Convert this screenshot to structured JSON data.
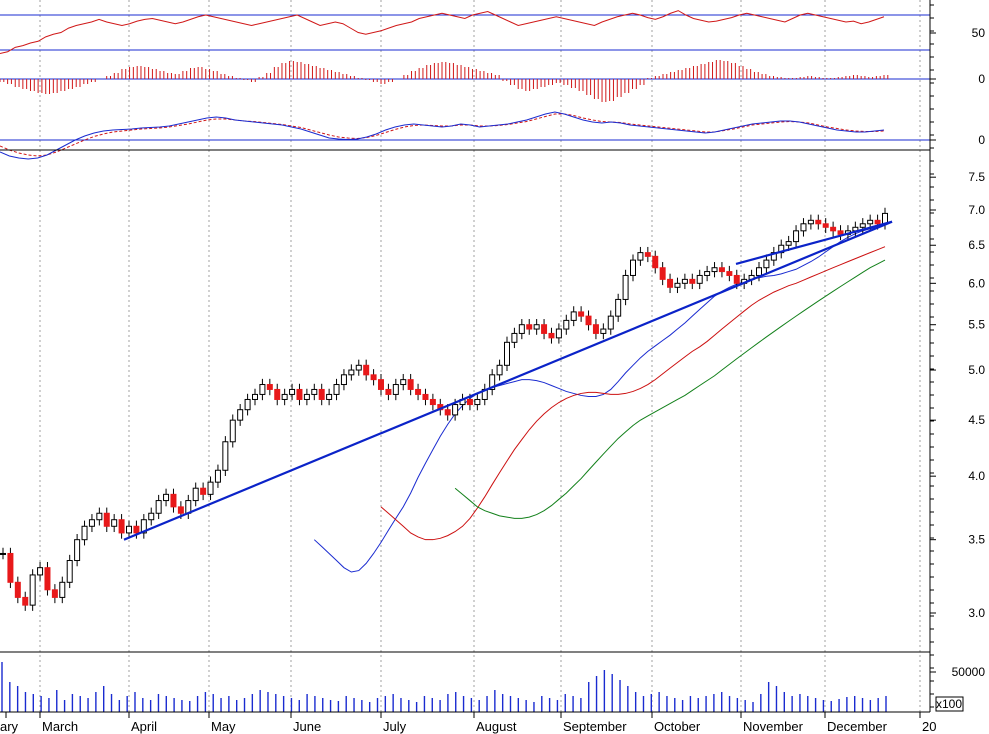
{
  "chart_data": {
    "type": "candlestick",
    "colors": {
      "up_candle": "#ffffff",
      "down_candle": "#e8191a",
      "ma_short": "#1a2bd0",
      "ma_mid": "#cc1010",
      "ma_long": "#12801a",
      "trendline": "#0b23c8",
      "rsi": "#d01818",
      "histogram": "#d01818",
      "macd": "#1a2bd0",
      "signal": "#d01818",
      "volume": "#1a2bd0",
      "grid": "#a0a0a0"
    },
    "x_labels": [
      "ary",
      "March",
      "April",
      "May",
      "June",
      "July",
      "August",
      "September",
      "October",
      "November",
      "December",
      "20"
    ],
    "panels": {
      "rsi": {
        "ticks": [
          "50"
        ],
        "reference_lines": [
          70,
          30
        ],
        "values": [
          26,
          28,
          33,
          35,
          38,
          40,
          45,
          48,
          50,
          55,
          58,
          60,
          62,
          65,
          62,
          60,
          58,
          60,
          63,
          65,
          66,
          64,
          62,
          60,
          62,
          65,
          68,
          70,
          68,
          66,
          64,
          62,
          60,
          58,
          60,
          62,
          64,
          66,
          68,
          70,
          66,
          62,
          58,
          60,
          62,
          60,
          55,
          50,
          48,
          50,
          52,
          55,
          58,
          60,
          62,
          66,
          68,
          70,
          72,
          70,
          68,
          66,
          70,
          72,
          74,
          70,
          66,
          62,
          58,
          60,
          62,
          64,
          66,
          68,
          66,
          64,
          62,
          60,
          58,
          62,
          65,
          68,
          70,
          72,
          70,
          67,
          65,
          68,
          72,
          75,
          70,
          66,
          64,
          62,
          63,
          65,
          67,
          70,
          72,
          70,
          68,
          66,
          64,
          62,
          66,
          70,
          72,
          70,
          68,
          66,
          64,
          62,
          63,
          60,
          62,
          65,
          68
        ]
      },
      "macd_histogram": {
        "ticks": [
          "0"
        ],
        "values": [
          -0.3,
          -0.5,
          -0.8,
          -1,
          -1.2,
          -1.4,
          -1.5,
          -1.4,
          -1.2,
          -1,
          -0.8,
          -0.5,
          -0.3,
          0,
          0.3,
          0.6,
          1,
          1.2,
          1.3,
          1.2,
          1,
          0.8,
          0.6,
          0.5,
          0.8,
          1.1,
          1.2,
          1,
          0.8,
          0.5,
          0.3,
          0.1,
          -0.1,
          -0.3,
          0.2,
          0.6,
          1.2,
          1.6,
          1.8,
          1.7,
          1.5,
          1.3,
          1.1,
          0.9,
          0.7,
          0.5,
          0.3,
          0.1,
          -0.1,
          -0.3,
          -0.5,
          -0.3,
          0,
          0.4,
          0.8,
          1.1,
          1.4,
          1.6,
          1.7,
          1.6,
          1.4,
          1.2,
          1,
          0.8,
          0.6,
          0.4,
          -0.2,
          -0.6,
          -1,
          -1.2,
          -1,
          -0.8,
          -0.6,
          -0.4,
          -0.6,
          -0.9,
          -1.2,
          -1.6,
          -2,
          -2.3,
          -2.2,
          -1.8,
          -1.4,
          -1,
          -0.6,
          0.1,
          0.3,
          0.5,
          0.7,
          0.9,
          1.1,
          1.3,
          1.5,
          1.7,
          1.9,
          1.8,
          1.6,
          1.3,
          1,
          0.7,
          0.5,
          0.3,
          0.2,
          0.1,
          0.1,
          0.2,
          0.3,
          0.2,
          0.1,
          0.1,
          0.2,
          0.3,
          0.4,
          0.3,
          0.2,
          0.3,
          0.4
        ]
      },
      "macd": {
        "ticks": [
          "0"
        ],
        "macd_values": [
          -1.2,
          -1.6,
          -1.8,
          -1.9,
          -1.8,
          -1.5,
          -1,
          -0.5,
          0,
          0.4,
          0.7,
          0.9,
          1,
          1.05,
          1.1,
          1.2,
          1.25,
          1.3,
          1.4,
          1.6,
          1.8,
          2,
          2.2,
          2.3,
          2.2,
          2,
          1.9,
          1.8,
          1.7,
          1.6,
          1.5,
          1.3,
          1.1,
          0.8,
          0.5,
          0.2,
          0.1,
          0.05,
          0.1,
          0.3,
          0.6,
          1,
          1.3,
          1.5,
          1.6,
          1.5,
          1.4,
          1.3,
          1.4,
          1.6,
          1.5,
          1.3,
          1.4,
          1.5,
          1.6,
          1.8,
          2,
          2.3,
          2.6,
          2.8,
          2.6,
          2.3,
          2,
          1.8,
          1.7,
          1.8,
          1.7,
          1.5,
          1.4,
          1.3,
          1.2,
          1.1,
          1,
          0.9,
          0.8,
          0.7,
          0.8,
          1,
          1.2,
          1.4,
          1.6,
          1.7,
          1.8,
          1.9,
          1.9,
          1.8,
          1.6,
          1.4,
          1.2,
          1,
          0.9,
          0.8,
          0.8,
          0.9,
          1
        ],
        "signal_values": [
          -0.6,
          -1,
          -1.3,
          -1.5,
          -1.6,
          -1.5,
          -1.2,
          -0.8,
          -0.4,
          0,
          0.35,
          0.6,
          0.8,
          0.9,
          1,
          1.1,
          1.15,
          1.2,
          1.3,
          1.45,
          1.6,
          1.8,
          2,
          2.1,
          2.1,
          2,
          1.9,
          1.85,
          1.75,
          1.65,
          1.55,
          1.4,
          1.25,
          1,
          0.75,
          0.5,
          0.3,
          0.2,
          0.15,
          0.25,
          0.45,
          0.75,
          1.05,
          1.3,
          1.45,
          1.5,
          1.45,
          1.4,
          1.4,
          1.5,
          1.5,
          1.4,
          1.4,
          1.45,
          1.55,
          1.7,
          1.85,
          2.1,
          2.35,
          2.6,
          2.6,
          2.45,
          2.2,
          2,
          1.85,
          1.8,
          1.75,
          1.6,
          1.5,
          1.4,
          1.3,
          1.2,
          1.1,
          1,
          0.9,
          0.8,
          0.8,
          0.95,
          1.1,
          1.3,
          1.5,
          1.6,
          1.7,
          1.8,
          1.85,
          1.8,
          1.7,
          1.5,
          1.3,
          1.15,
          1,
          0.9,
          0.85,
          0.85,
          0.9
        ]
      },
      "price": {
        "ticks": [
          "3.0",
          "3.5",
          "4.0",
          "4.5",
          "5.0",
          "5.5",
          "6.0",
          "6.5",
          "7.0",
          "7.5"
        ],
        "trendlines": [
          {
            "from": [
              "April",
              3.5
            ],
            "to": [
              "December",
              6.83
            ]
          },
          {
            "from": [
              "November",
              6.25
            ],
            "to": [
              "December",
              6.83
            ]
          }
        ],
        "close": [
          3.4,
          3.2,
          3.1,
          3.05,
          3.25,
          3.3,
          3.15,
          3.1,
          3.2,
          3.35,
          3.5,
          3.6,
          3.65,
          3.7,
          3.6,
          3.65,
          3.55,
          3.6,
          3.55,
          3.65,
          3.7,
          3.8,
          3.85,
          3.75,
          3.7,
          3.8,
          3.9,
          3.85,
          3.95,
          4.05,
          4.3,
          4.5,
          4.6,
          4.7,
          4.75,
          4.85,
          4.8,
          4.7,
          4.75,
          4.8,
          4.7,
          4.75,
          4.8,
          4.7,
          4.75,
          4.85,
          4.95,
          5.0,
          5.05,
          4.95,
          4.9,
          4.8,
          4.75,
          4.85,
          4.9,
          4.8,
          4.75,
          4.7,
          4.65,
          4.6,
          4.55,
          4.65,
          4.7,
          4.65,
          4.7,
          4.8,
          4.95,
          5.05,
          5.3,
          5.4,
          5.5,
          5.45,
          5.5,
          5.4,
          5.35,
          5.45,
          5.55,
          5.65,
          5.6,
          5.5,
          5.4,
          5.45,
          5.6,
          5.8,
          6.1,
          6.3,
          6.4,
          6.35,
          6.2,
          6.05,
          5.95,
          6.0,
          6.05,
          6.0,
          6.1,
          6.15,
          6.2,
          6.15,
          6.1,
          6.0,
          6.05,
          6.1,
          6.2,
          6.3,
          6.4,
          6.5,
          6.55,
          6.7,
          6.8,
          6.85,
          6.8,
          6.75,
          6.7,
          6.65,
          6.7,
          6.75,
          6.8,
          6.85,
          6.8,
          6.95
        ],
        "moving_averages": [
          {
            "color_key": "ma_short",
            "values": [
              3.5,
              3.45,
              3.4,
              3.35,
              3.3,
              3.27,
              3.28,
              3.33,
              3.4,
              3.48,
              3.57,
              3.66,
              3.75,
              3.86,
              3.99,
              4.11,
              4.23,
              4.35,
              4.46,
              4.56,
              4.64,
              4.71,
              4.76,
              4.79,
              4.82,
              4.84,
              4.86,
              4.88,
              4.9,
              4.9,
              4.89,
              4.87,
              4.84,
              4.81,
              4.78,
              4.76,
              4.74,
              4.73,
              4.73,
              4.75,
              4.8,
              4.88,
              4.97,
              5.05,
              5.13,
              5.2,
              5.26,
              5.32,
              5.38,
              5.45,
              5.52,
              5.6,
              5.68,
              5.76,
              5.84,
              5.9,
              5.95,
              5.99,
              6.02,
              6.05,
              6.07,
              6.09,
              6.1,
              6.12,
              6.15,
              6.18,
              6.23,
              6.28,
              6.34,
              6.41,
              6.48,
              6.55,
              6.61,
              6.66,
              6.7,
              6.73,
              6.75,
              6.78
            ]
          },
          {
            "color_key": "ma_mid",
            "values": [
              3.75,
              3.7,
              3.65,
              3.6,
              3.55,
              3.52,
              3.5,
              3.5,
              3.51,
              3.53,
              3.56,
              3.6,
              3.66,
              3.74,
              3.83,
              3.93,
              4.03,
              4.13,
              4.23,
              4.32,
              4.41,
              4.49,
              4.56,
              4.62,
              4.67,
              4.71,
              4.74,
              4.76,
              4.77,
              4.77,
              4.76,
              4.75,
              4.75,
              4.76,
              4.78,
              4.81,
              4.85,
              4.9,
              4.96,
              5.02,
              5.08,
              5.14,
              5.2,
              5.25,
              5.31,
              5.38,
              5.45,
              5.52,
              5.59,
              5.66,
              5.73,
              5.79,
              5.84,
              5.89,
              5.93,
              5.97,
              6.0,
              6.04,
              6.08,
              6.12,
              6.16,
              6.2,
              6.24,
              6.28,
              6.32,
              6.36,
              6.4,
              6.44,
              6.48
            ]
          },
          {
            "color_key": "ma_long",
            "values": [
              3.9,
              3.85,
              3.8,
              3.75,
              3.72,
              3.7,
              3.68,
              3.67,
              3.66,
              3.66,
              3.67,
              3.69,
              3.72,
              3.76,
              3.81,
              3.86,
              3.92,
              3.98,
              4.05,
              4.12,
              4.19,
              4.26,
              4.33,
              4.39,
              4.45,
              4.5,
              4.54,
              4.58,
              4.62,
              4.66,
              4.7,
              4.74,
              4.79,
              4.84,
              4.89,
              4.94,
              5.0,
              5.06,
              5.12,
              5.18,
              5.24,
              5.3,
              5.36,
              5.42,
              5.48,
              5.54,
              5.6,
              5.66,
              5.72,
              5.78,
              5.84,
              5.9,
              5.96,
              6.02,
              6.08,
              6.14,
              6.2,
              6.25,
              6.3
            ]
          }
        ]
      },
      "volume": {
        "ticks": [
          "50000",
          "x100"
        ],
        "values": [
          500,
          300,
          260,
          200,
          180,
          160,
          140,
          220,
          120,
          180,
          160,
          140,
          200,
          260,
          180,
          120,
          160,
          200,
          140,
          120,
          180,
          160,
          140,
          120,
          110,
          160,
          200,
          180,
          140,
          160,
          120,
          140,
          180,
          220,
          200,
          180,
          160,
          140,
          120,
          180,
          160,
          140,
          120,
          110,
          160,
          140,
          120,
          100,
          140,
          160,
          180,
          140,
          120,
          100,
          160,
          140,
          120,
          180,
          200,
          160,
          140,
          120,
          160,
          220,
          180,
          160,
          140,
          120,
          100,
          160,
          140,
          120,
          180,
          160,
          140,
          300,
          360,
          420,
          380,
          320,
          260,
          200,
          160,
          180,
          200,
          160,
          140,
          120,
          160,
          140,
          160,
          180,
          200,
          160,
          140,
          120,
          100,
          180,
          300,
          260,
          200,
          160,
          180,
          160,
          140,
          120,
          110,
          130,
          150,
          160,
          140,
          120,
          140,
          160
        ]
      }
    }
  }
}
